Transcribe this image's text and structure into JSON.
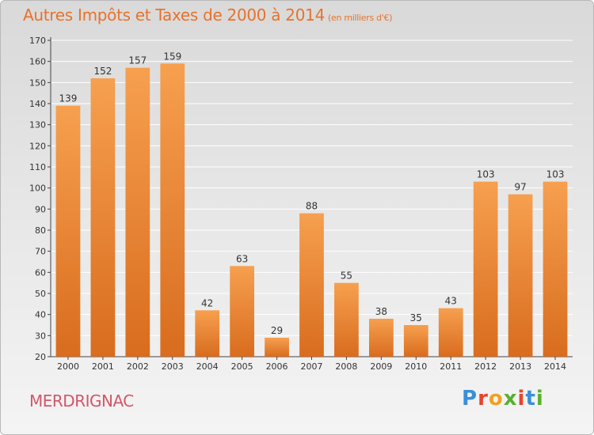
{
  "header": {
    "title": "Autres Impôts et Taxes de 2000 à 2014",
    "subtitle": "(en milliers d'€)"
  },
  "footer": {
    "town": "MERDRIGNAC",
    "logo": "Proxiti",
    "logo_colors": [
      "#3a8fd8",
      "#e8432b",
      "#f0a020",
      "#58b030",
      "#e8432b",
      "#3a8fd8",
      "#58b030"
    ]
  },
  "colors": {
    "bar_top": "#f6a04f",
    "bar_bottom": "#d96c1e",
    "title": "#e8722b",
    "town": "#d2566b",
    "grid": "#ffffff"
  },
  "chart_data": {
    "type": "bar",
    "title": "Autres Impôts et Taxes de 2000 à 2014",
    "subtitle": "(en milliers d'€)",
    "xlabel": "",
    "ylabel": "",
    "categories": [
      "2000",
      "2001",
      "2002",
      "2003",
      "2004",
      "2005",
      "2006",
      "2007",
      "2008",
      "2009",
      "2010",
      "2011",
      "2012",
      "2013",
      "2014"
    ],
    "values": [
      139,
      152,
      157,
      159,
      42,
      63,
      29,
      88,
      55,
      38,
      35,
      43,
      103,
      97,
      103
    ],
    "ylim": [
      20,
      170
    ],
    "yticks": [
      20,
      30,
      40,
      50,
      60,
      70,
      80,
      90,
      100,
      110,
      120,
      130,
      140,
      150,
      160,
      170
    ],
    "grid": true,
    "legend": "none"
  }
}
